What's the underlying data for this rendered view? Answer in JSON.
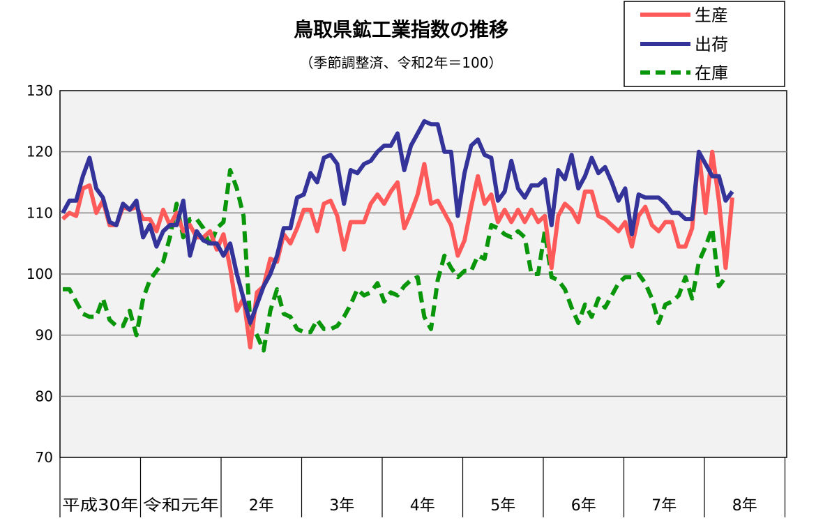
{
  "chart_data": {
    "type": "line",
    "title": "鳥取県鉱工業指数の推移",
    "subtitle": "（季節調整済、令和2年＝100）",
    "xlabel": "",
    "ylabel": "",
    "ylim": [
      70,
      130
    ],
    "yticks": [
      "130",
      "120",
      "110",
      "100",
      "90",
      "80",
      "70"
    ],
    "year_labels": [
      "平成30年",
      "令和元年",
      "2年",
      "3年",
      "4年",
      "5年",
      "6年",
      "7年",
      "8年"
    ],
    "grid": true,
    "legend_position": "top-right",
    "series": [
      {
        "name": "生産",
        "color": "#ff5a5a",
        "style": "solid",
        "values": [
          109,
          110,
          109.5,
          114,
          114.5,
          110,
          112,
          108,
          108,
          111,
          110.5,
          111,
          109,
          109,
          107,
          110.5,
          108,
          110,
          107,
          108,
          106,
          106,
          107,
          104,
          106.5,
          101,
          94,
          96,
          88,
          97,
          98,
          102.5,
          102,
          106.5,
          105,
          107.5,
          110.5,
          110.5,
          107,
          111.5,
          112,
          109.5,
          104,
          108.5,
          108.5,
          108.5,
          111.5,
          113,
          111.5,
          113.5,
          115,
          107.5,
          110,
          113,
          118,
          111.5,
          112,
          110,
          108,
          103,
          105.5,
          111,
          116,
          111.5,
          113,
          108.5,
          110.5,
          108.5,
          110.5,
          108.5,
          110.5,
          108.5,
          109.5,
          101,
          109.5,
          111.5,
          110.5,
          108.5,
          113.5,
          113.5,
          109.5,
          109,
          108,
          107,
          108.5,
          104.5,
          109.5,
          111,
          108,
          107,
          108.5,
          108.5,
          104.5,
          104.5,
          107.5,
          120,
          110,
          120,
          112,
          101,
          112.5
        ]
      },
      {
        "name": "出荷",
        "color": "#33339a",
        "style": "solid",
        "values": [
          110,
          112,
          112,
          116,
          119,
          114,
          112.5,
          108.5,
          108,
          111.5,
          110.5,
          112,
          106,
          108,
          104.5,
          107,
          108,
          108,
          112,
          103,
          107,
          105.5,
          105,
          105,
          103,
          105,
          100,
          96,
          92,
          95,
          98,
          100,
          103,
          107.5,
          107.5,
          112.5,
          113,
          116.5,
          115,
          119,
          119.5,
          118,
          111.5,
          117,
          116.5,
          118,
          118.5,
          120,
          121,
          121,
          123,
          117,
          121,
          123,
          125,
          124.5,
          124.5,
          120,
          120,
          109.5,
          116.5,
          121,
          122,
          119.5,
          119,
          112,
          113.5,
          118.5,
          114,
          112.5,
          114.5,
          114.5,
          115.5,
          108,
          117,
          115.5,
          119.5,
          114,
          116,
          119,
          116.5,
          117.5,
          115,
          112,
          114,
          106.5,
          113,
          112.5,
          112.5,
          112.5,
          111.5,
          110,
          110,
          109,
          109,
          120,
          118,
          116,
          116,
          112,
          113.5
        ]
      },
      {
        "name": "在庫",
        "color": "#0a960a",
        "style": "dashed",
        "values": [
          97.5,
          97.5,
          95.5,
          93.5,
          93,
          93,
          96,
          92.5,
          91.5,
          91.5,
          94,
          90,
          96,
          99,
          100.5,
          102,
          106,
          111.5,
          106,
          109,
          109,
          107.5,
          104.5,
          107.5,
          108.5,
          117,
          114,
          109.5,
          92,
          90,
          87.5,
          94,
          97.5,
          93.5,
          93,
          91,
          90.5,
          90.5,
          92.5,
          91,
          91,
          91.5,
          93,
          95,
          97.5,
          96.5,
          97,
          98.5,
          95.5,
          97,
          96.5,
          98,
          99,
          99.5,
          93,
          91,
          99,
          103,
          101,
          99.5,
          100.5,
          100.5,
          103,
          102.5,
          108,
          107.5,
          106.5,
          106,
          107,
          106,
          100,
          100,
          107,
          99.5,
          99,
          97.5,
          94.5,
          92,
          95,
          93,
          96,
          94.5,
          96.5,
          98.5,
          99.5,
          99.5,
          100,
          98.5,
          96,
          92,
          95,
          95.5,
          96.5,
          99.5,
          96,
          102,
          104.5,
          107.5,
          98,
          99.5
        ]
      }
    ]
  }
}
